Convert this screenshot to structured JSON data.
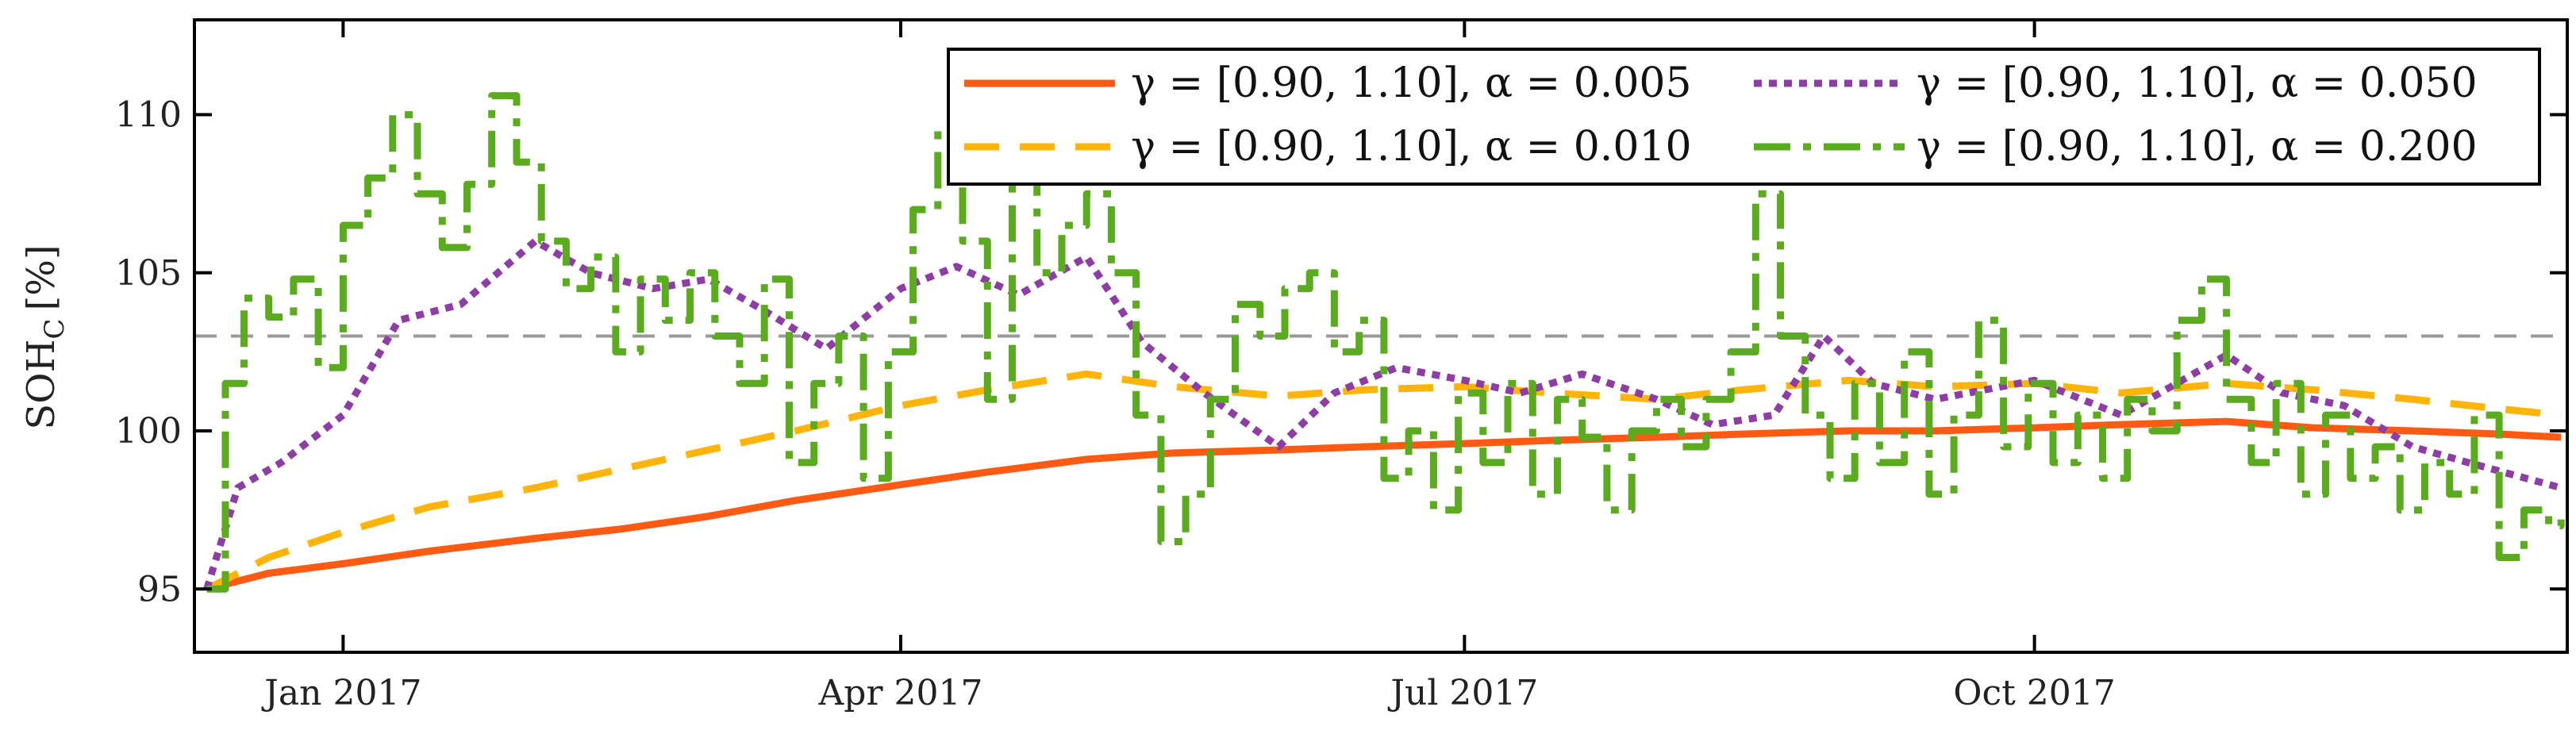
{
  "chart_data": {
    "type": "line",
    "title": "",
    "ylabel_main": "SOH",
    "ylabel_sub": "C",
    "ylabel_unit": "[%]",
    "xlabel": "",
    "xlim": [
      "2016-12-08",
      "2017-12-26"
    ],
    "ylim": [
      93,
      113
    ],
    "yticks": [
      95,
      100,
      105,
      110
    ],
    "xticks": [
      {
        "date": "2017-01-01",
        "label": "Jan 2017"
      },
      {
        "date": "2017-04-01",
        "label": "Apr 2017"
      },
      {
        "date": "2017-07-01",
        "label": "Jul 2017"
      },
      {
        "date": "2017-10-01",
        "label": "Oct 2017"
      }
    ],
    "reference_line": {
      "y": 103,
      "color": "#999999"
    },
    "legend_position": "top-right",
    "series": [
      {
        "name": "γ = [0.90, 1.10], α = 0.005",
        "color": "#ff5a14",
        "style": "solid",
        "x": [
          "2016-12-10",
          "2016-12-20",
          "2017-01-01",
          "2017-01-15",
          "2017-02-01",
          "2017-02-15",
          "2017-03-01",
          "2017-03-15",
          "2017-04-01",
          "2017-04-15",
          "2017-05-01",
          "2017-05-15",
          "2017-06-01",
          "2017-06-15",
          "2017-07-01",
          "2017-07-15",
          "2017-08-01",
          "2017-08-15",
          "2017-09-01",
          "2017-09-15",
          "2017-10-01",
          "2017-10-15",
          "2017-11-01",
          "2017-11-15",
          "2017-12-01",
          "2017-12-15",
          "2017-12-25"
        ],
        "y": [
          95.0,
          95.5,
          95.8,
          96.2,
          96.6,
          96.9,
          97.3,
          97.8,
          98.3,
          98.7,
          99.1,
          99.3,
          99.4,
          99.5,
          99.6,
          99.7,
          99.8,
          99.9,
          100.0,
          100.0,
          100.1,
          100.2,
          100.3,
          100.1,
          100.0,
          99.9,
          99.8
        ]
      },
      {
        "name": "γ = [0.90, 1.10], α = 0.010",
        "color": "#ffb40a",
        "style": "dashed",
        "x": [
          "2016-12-10",
          "2016-12-20",
          "2017-01-01",
          "2017-01-15",
          "2017-02-01",
          "2017-02-15",
          "2017-03-01",
          "2017-03-15",
          "2017-04-01",
          "2017-04-15",
          "2017-05-01",
          "2017-05-15",
          "2017-06-01",
          "2017-06-15",
          "2017-07-01",
          "2017-07-15",
          "2017-08-01",
          "2017-08-15",
          "2017-09-01",
          "2017-09-15",
          "2017-10-01",
          "2017-10-15",
          "2017-11-01",
          "2017-11-15",
          "2017-12-01",
          "2017-12-15",
          "2017-12-25"
        ],
        "y": [
          95.0,
          96.0,
          96.8,
          97.6,
          98.2,
          98.8,
          99.4,
          100.0,
          100.8,
          101.3,
          101.8,
          101.4,
          101.1,
          101.3,
          101.4,
          101.2,
          101.0,
          101.3,
          101.6,
          101.4,
          101.5,
          101.2,
          101.5,
          101.3,
          101.0,
          100.7,
          100.5
        ]
      },
      {
        "name": "γ = [0.90, 1.10], α = 0.050",
        "color": "#8e3da6",
        "style": "dotted",
        "x": [
          "2016-12-10",
          "2016-12-15",
          "2016-12-22",
          "2017-01-01",
          "2017-01-10",
          "2017-01-20",
          "2017-02-01",
          "2017-02-10",
          "2017-02-20",
          "2017-03-01",
          "2017-03-10",
          "2017-03-20",
          "2017-04-01",
          "2017-04-10",
          "2017-04-20",
          "2017-05-01",
          "2017-05-10",
          "2017-05-20",
          "2017-06-01",
          "2017-06-10",
          "2017-06-20",
          "2017-07-01",
          "2017-07-10",
          "2017-07-20",
          "2017-08-01",
          "2017-08-10",
          "2017-08-20",
          "2017-08-28",
          "2017-09-05",
          "2017-09-15",
          "2017-10-01",
          "2017-10-15",
          "2017-11-01",
          "2017-11-10",
          "2017-11-20",
          "2017-12-01",
          "2017-12-10",
          "2017-12-25"
        ],
        "y": [
          95.0,
          98.2,
          99.0,
          100.5,
          103.5,
          104.0,
          106.0,
          105.0,
          104.5,
          104.8,
          103.8,
          102.6,
          104.5,
          105.2,
          104.3,
          105.5,
          102.8,
          101.2,
          99.5,
          101.2,
          102.0,
          101.6,
          101.2,
          101.8,
          101.0,
          100.2,
          100.5,
          103.0,
          101.5,
          101.0,
          101.6,
          100.5,
          102.4,
          101.2,
          100.8,
          99.5,
          99.0,
          98.2
        ]
      },
      {
        "name": "γ = [0.90, 1.10], α = 0.200",
        "color": "#5aac1e",
        "style": "dashdot",
        "x": [
          "2016-12-10",
          "2016-12-13",
          "2016-12-16",
          "2016-12-20",
          "2016-12-24",
          "2016-12-28",
          "2017-01-01",
          "2017-01-05",
          "2017-01-09",
          "2017-01-13",
          "2017-01-17",
          "2017-01-21",
          "2017-01-25",
          "2017-01-29",
          "2017-02-02",
          "2017-02-06",
          "2017-02-10",
          "2017-02-14",
          "2017-02-18",
          "2017-02-22",
          "2017-02-26",
          "2017-03-02",
          "2017-03-06",
          "2017-03-10",
          "2017-03-14",
          "2017-03-18",
          "2017-03-22",
          "2017-03-26",
          "2017-03-30",
          "2017-04-03",
          "2017-04-07",
          "2017-04-11",
          "2017-04-15",
          "2017-04-19",
          "2017-04-23",
          "2017-04-27",
          "2017-05-01",
          "2017-05-05",
          "2017-05-09",
          "2017-05-13",
          "2017-05-17",
          "2017-05-21",
          "2017-05-25",
          "2017-05-29",
          "2017-06-02",
          "2017-06-06",
          "2017-06-10",
          "2017-06-14",
          "2017-06-18",
          "2017-06-22",
          "2017-06-26",
          "2017-06-30",
          "2017-07-04",
          "2017-07-08",
          "2017-07-12",
          "2017-07-16",
          "2017-07-20",
          "2017-07-24",
          "2017-07-28",
          "2017-08-01",
          "2017-08-05",
          "2017-08-09",
          "2017-08-13",
          "2017-08-17",
          "2017-08-21",
          "2017-08-25",
          "2017-08-29",
          "2017-09-02",
          "2017-09-06",
          "2017-09-10",
          "2017-09-14",
          "2017-09-18",
          "2017-09-22",
          "2017-09-26",
          "2017-09-30",
          "2017-10-04",
          "2017-10-08",
          "2017-10-12",
          "2017-10-16",
          "2017-10-20",
          "2017-10-24",
          "2017-10-28",
          "2017-11-01",
          "2017-11-05",
          "2017-11-09",
          "2017-11-13",
          "2017-11-17",
          "2017-11-21",
          "2017-11-25",
          "2017-11-29",
          "2017-12-03",
          "2017-12-07",
          "2017-12-11",
          "2017-12-15",
          "2017-12-19",
          "2017-12-23",
          "2017-12-25"
        ],
        "y": [
          95.0,
          101.5,
          104.2,
          103.6,
          104.8,
          102.0,
          106.5,
          108.0,
          110.0,
          107.5,
          105.8,
          107.8,
          110.6,
          108.5,
          106.0,
          104.5,
          105.5,
          102.5,
          104.8,
          103.5,
          105.0,
          103.0,
          101.5,
          104.8,
          99.0,
          101.5,
          103.0,
          98.5,
          102.5,
          107.0,
          109.5,
          106.0,
          101.0,
          108.0,
          105.0,
          106.5,
          107.5,
          105.0,
          100.5,
          96.5,
          98.0,
          101.0,
          104.0,
          103.0,
          104.5,
          105.0,
          102.5,
          103.5,
          98.5,
          100.0,
          97.5,
          101.2,
          99.0,
          101.5,
          98.0,
          101.0,
          99.8,
          97.5,
          100.0,
          101.0,
          99.5,
          101.0,
          102.5,
          107.5,
          103.0,
          100.5,
          98.5,
          101.5,
          99.0,
          102.5,
          98.0,
          100.5,
          103.5,
          99.5,
          101.5,
          99.0,
          100.5,
          98.5,
          101.0,
          100.0,
          103.5,
          104.8,
          101.0,
          99.0,
          101.5,
          98.0,
          100.5,
          98.5,
          99.5,
          97.5,
          99.0,
          98.0,
          100.5,
          96.0,
          97.5,
          97.0,
          97.2
        ]
      }
    ]
  }
}
